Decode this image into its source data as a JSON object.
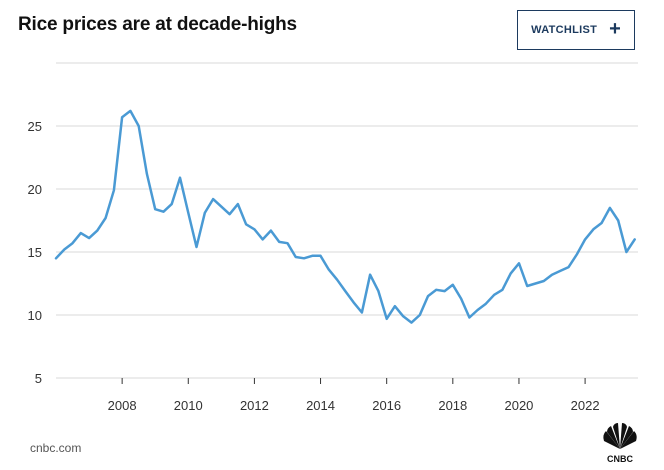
{
  "header": {
    "title": "Rice prices are at decade-highs",
    "watchlist_label": "WATCHLIST",
    "watchlist_icon": "plus-icon"
  },
  "footer": {
    "source": "cnbc.com",
    "logo_text": "CNBC"
  },
  "colors": {
    "line": "#4a9ad4",
    "grid": "#d9d9d9",
    "button_border": "#1c3a5e"
  },
  "chart_data": {
    "type": "line",
    "title": "Rice prices are at decade-highs",
    "xlabel": "",
    "ylabel": "",
    "xlim": [
      2006.0,
      2023.6
    ],
    "ylim": [
      5,
      30
    ],
    "x_ticks": [
      2008,
      2010,
      2012,
      2014,
      2016,
      2018,
      2020,
      2022
    ],
    "y_ticks": [
      5,
      10,
      15,
      20,
      25
    ],
    "grid": true,
    "series": [
      {
        "x": [
          2006.0,
          2006.25,
          2006.5,
          2006.75,
          2007.0,
          2007.25,
          2007.5,
          2007.75,
          2008.0,
          2008.25,
          2008.5,
          2008.75,
          2009.0,
          2009.25,
          2009.5,
          2009.75,
          2010.0,
          2010.25,
          2010.5,
          2010.75,
          2011.0,
          2011.25,
          2011.5,
          2011.75,
          2012.0,
          2012.25,
          2012.5,
          2012.75,
          2013.0,
          2013.25,
          2013.5,
          2013.75,
          2014.0,
          2014.25,
          2014.5,
          2014.75,
          2015.0,
          2015.25,
          2015.5,
          2015.75,
          2016.0,
          2016.25,
          2016.5,
          2016.75,
          2017.0,
          2017.25,
          2017.5,
          2017.75,
          2018.0,
          2018.25,
          2018.5,
          2018.75,
          2019.0,
          2019.25,
          2019.5,
          2019.75,
          2020.0,
          2020.25,
          2020.5,
          2020.75,
          2021.0,
          2021.25,
          2021.5,
          2021.75,
          2022.0,
          2022.25,
          2022.5,
          2022.75,
          2023.0,
          2023.25,
          2023.5
        ],
        "values": [
          14.5,
          15.2,
          15.7,
          16.5,
          16.1,
          16.7,
          17.7,
          19.9,
          25.7,
          26.2,
          25.0,
          21.2,
          18.4,
          18.2,
          18.8,
          20.9,
          18.1,
          15.4,
          18.1,
          19.2,
          18.6,
          18.0,
          18.8,
          17.2,
          16.8,
          16.0,
          16.7,
          15.8,
          15.7,
          14.6,
          14.5,
          14.7,
          14.7,
          13.6,
          12.8,
          11.9,
          11.0,
          10.2,
          13.2,
          11.9,
          9.7,
          10.7,
          9.9,
          9.4,
          10.0,
          11.5,
          12.0,
          11.9,
          12.4,
          11.3,
          9.8,
          10.4,
          10.9,
          11.6,
          12.0,
          13.3,
          14.1,
          12.3,
          12.5,
          12.7,
          13.2,
          13.5,
          13.8,
          14.8,
          16.0,
          16.8,
          17.3,
          18.5,
          17.5,
          15.0,
          16.0
        ]
      }
    ]
  }
}
